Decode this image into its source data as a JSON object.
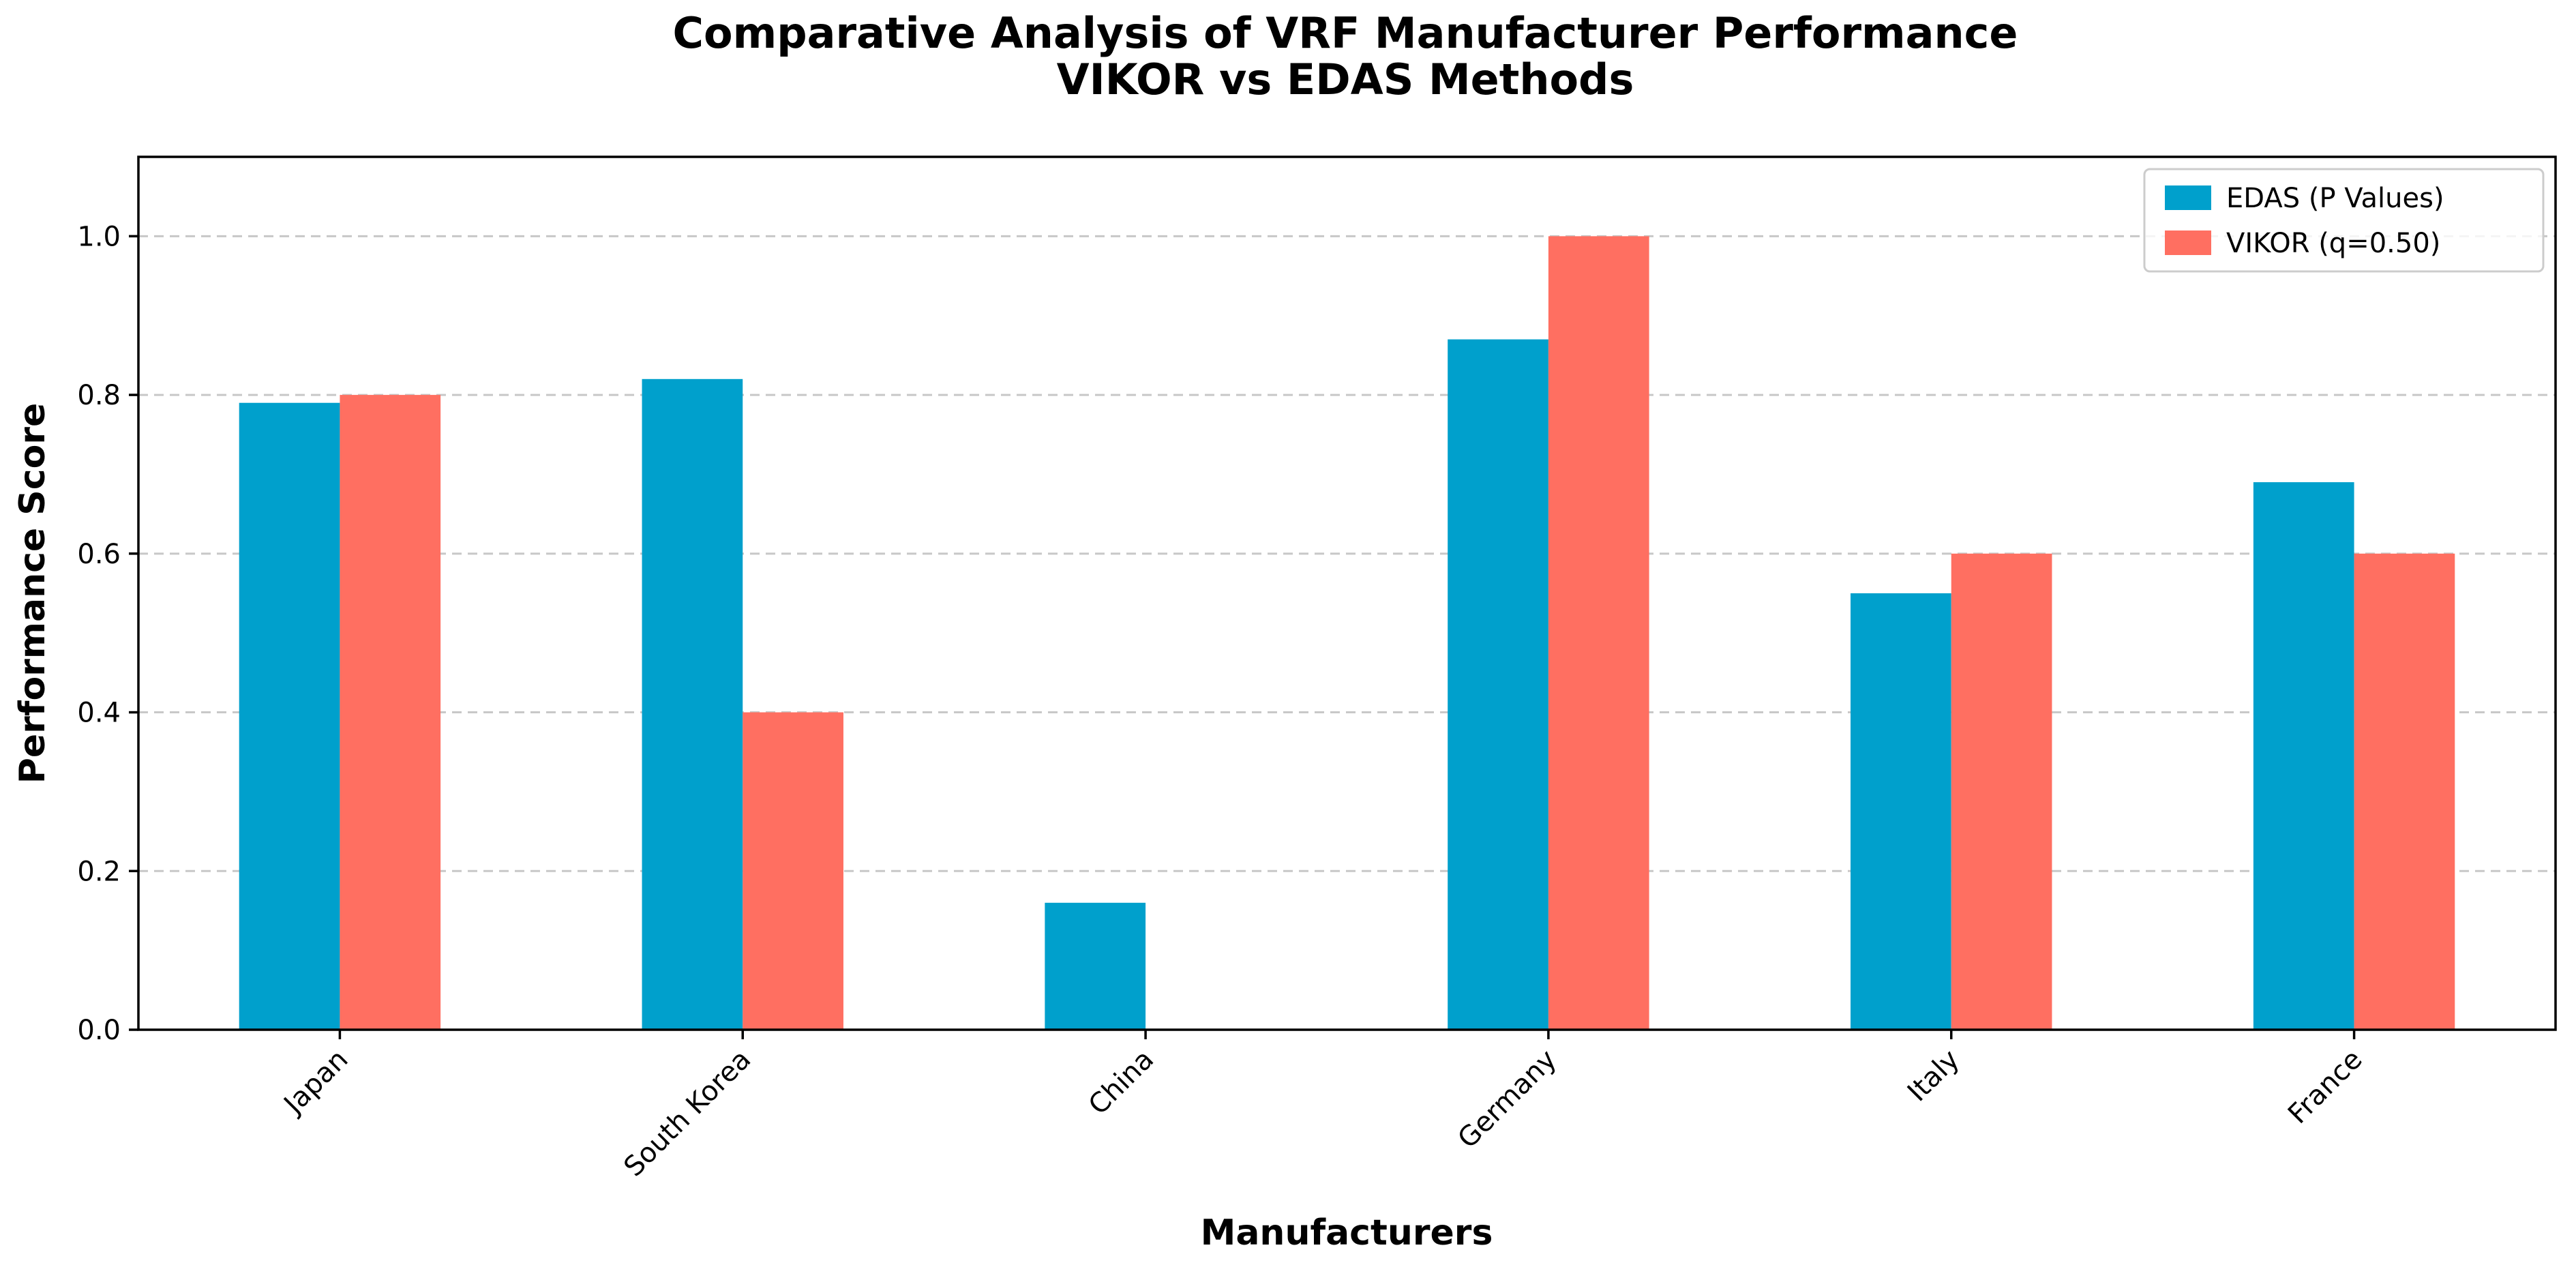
{
  "chart_data": {
    "type": "bar",
    "title_lines": [
      "Comparative Analysis of VRF Manufacturer Performance",
      "VIKOR vs EDAS Methods"
    ],
    "xlabel": "Manufacturers",
    "ylabel": "Performance Score",
    "categories": [
      "Japan",
      "South Korea",
      "China",
      "Germany",
      "Italy",
      "France"
    ],
    "series": [
      {
        "name": "EDAS (P Values)",
        "color": "#00a0cc",
        "values": [
          0.79,
          0.82,
          0.16,
          0.87,
          0.55,
          0.69
        ]
      },
      {
        "name": "VIKOR (q=0.50)",
        "color": "#ff6f61",
        "values": [
          0.8,
          0.4,
          0.0,
          1.0,
          0.6,
          0.6
        ]
      }
    ],
    "ylim": [
      0,
      1.1
    ],
    "yticks": [
      0.0,
      0.2,
      0.4,
      0.6,
      0.8,
      1.0
    ],
    "ytick_labels": [
      "0.0",
      "0.2",
      "0.4",
      "0.6",
      "0.8",
      "1.0"
    ],
    "grid": "y-dashed",
    "legend_position": "top-right"
  }
}
